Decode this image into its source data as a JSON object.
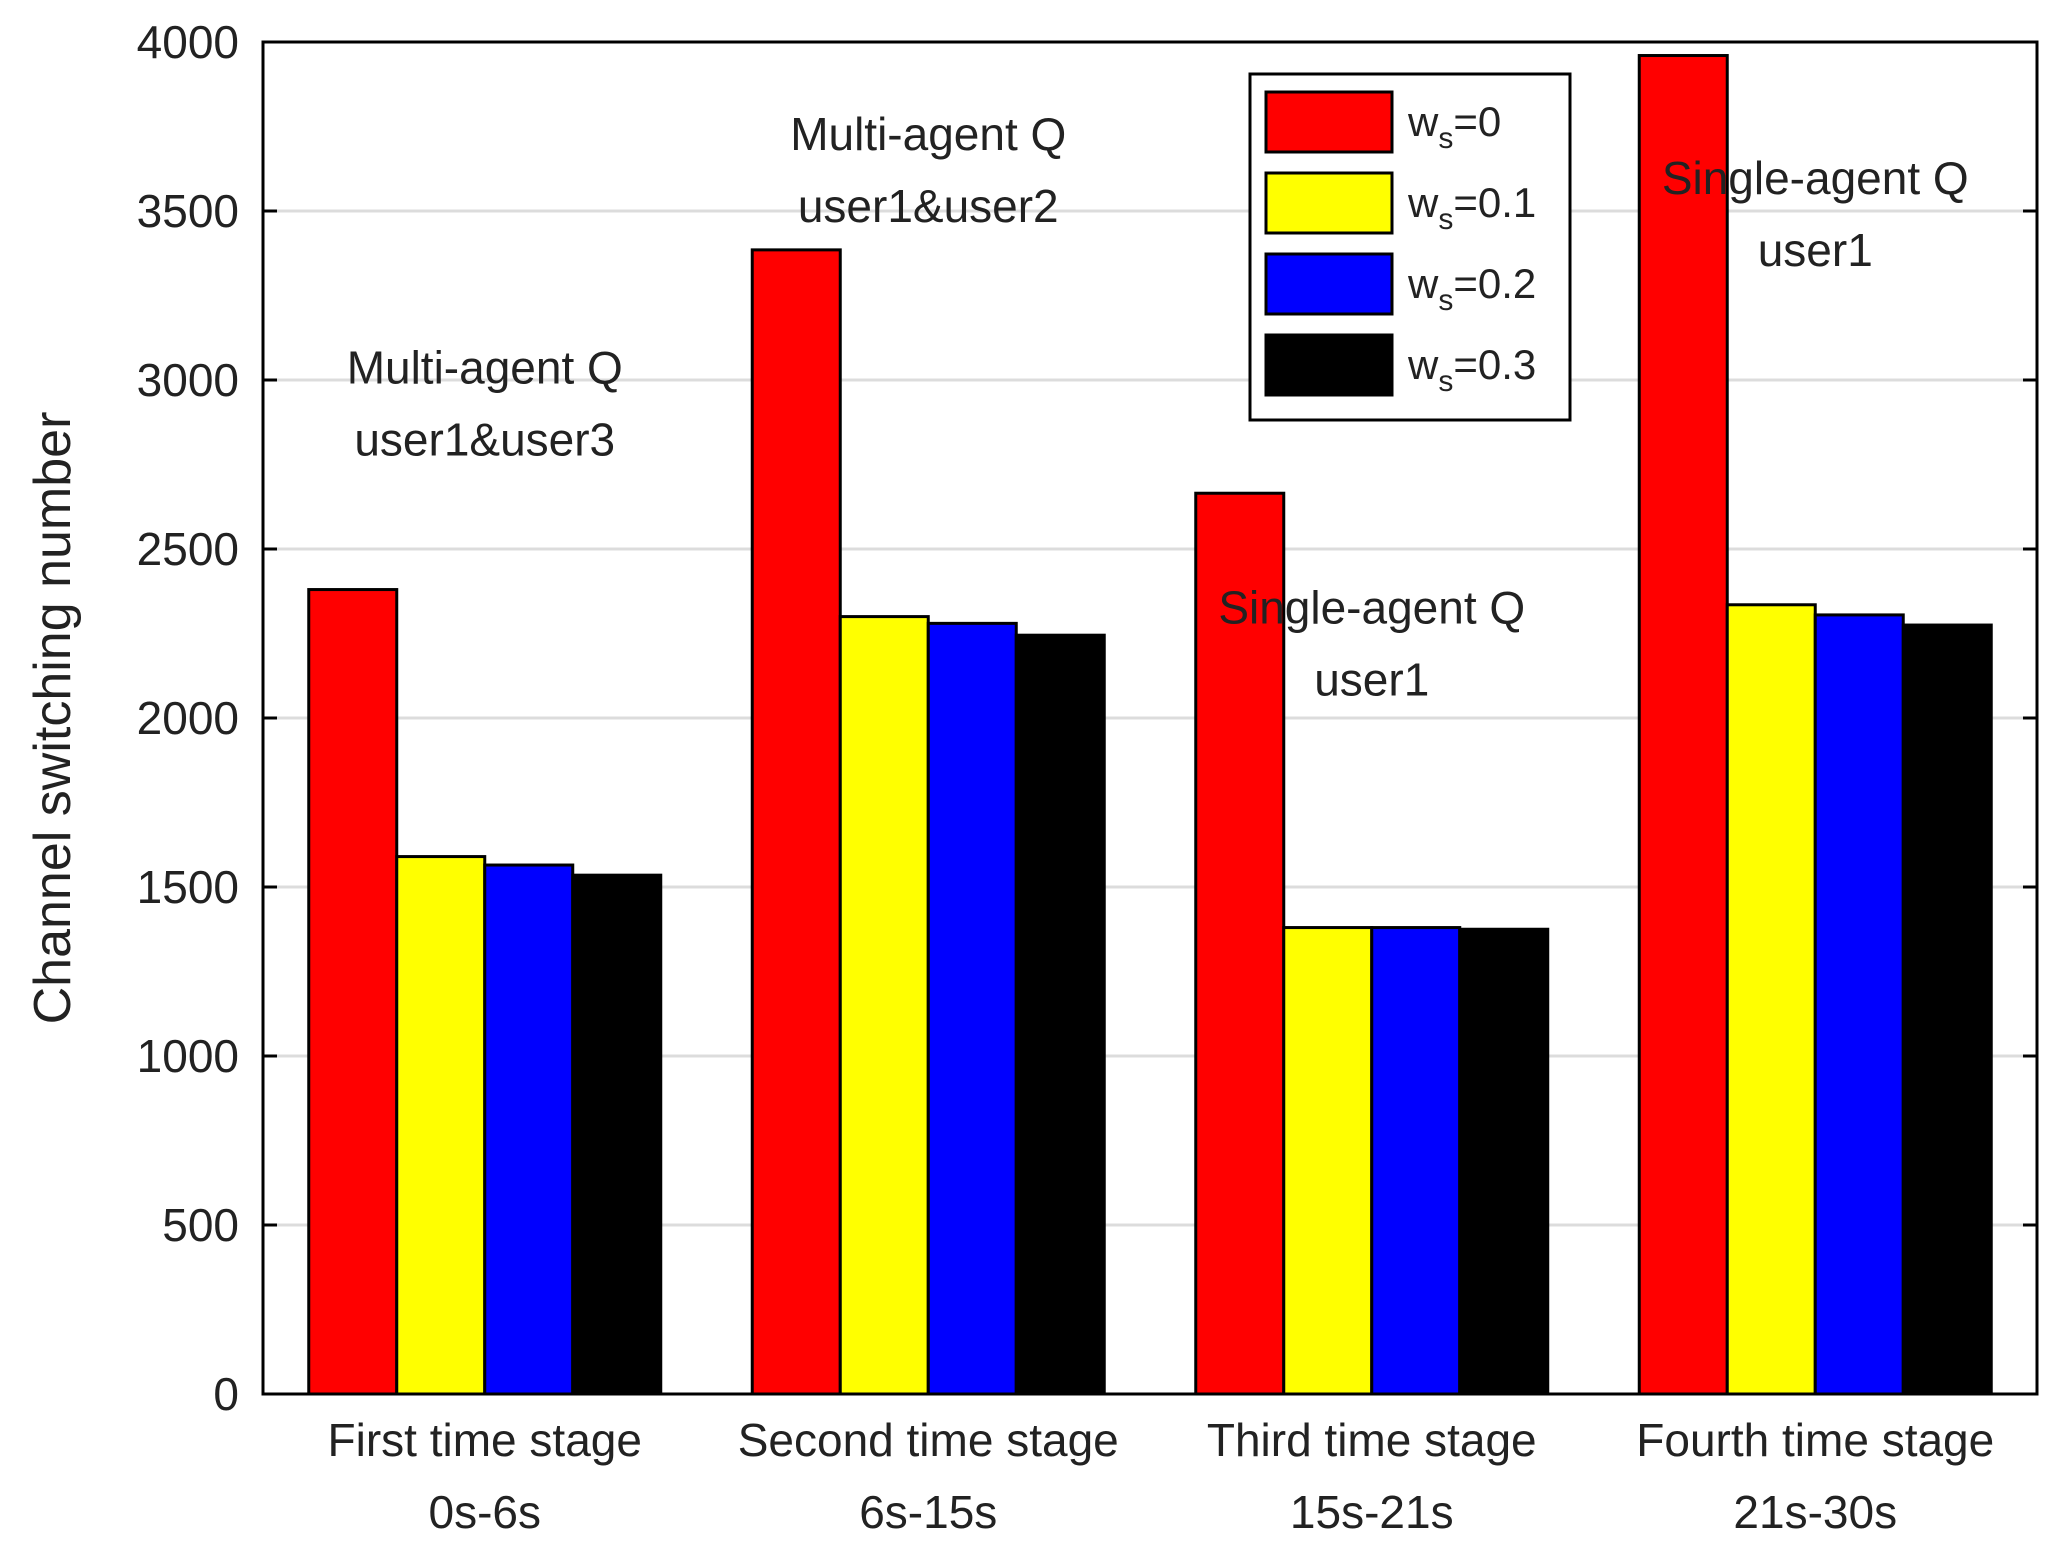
{
  "chart_data": {
    "type": "bar",
    "title": "",
    "xlabel": "",
    "ylabel": "Channel switching number",
    "ylim": [
      0,
      4000
    ],
    "yticks": [
      0,
      500,
      1000,
      1500,
      2000,
      2500,
      3000,
      3500,
      4000
    ],
    "grid": true,
    "legend_position": "top-right",
    "categories": [
      {
        "line1": "First time stage",
        "line2": "0s-6s"
      },
      {
        "line1": "Second time stage",
        "line2": "6s-15s"
      },
      {
        "line1": "Third time stage",
        "line2": "15s-21s"
      },
      {
        "line1": "Fourth time stage",
        "line2": "21s-30s"
      }
    ],
    "series": [
      {
        "name": "ws=0",
        "legend_main": "w",
        "legend_sub": "s",
        "legend_value": "=0",
        "color": "#ff0000",
        "values": [
          2380,
          3385,
          2665,
          3960
        ]
      },
      {
        "name": "ws=0.1",
        "legend_main": "w",
        "legend_sub": "s",
        "legend_value": "=0.1",
        "color": "#ffff00",
        "values": [
          1590,
          2300,
          1380,
          2335
        ]
      },
      {
        "name": "ws=0.2",
        "legend_main": "w",
        "legend_sub": "s",
        "legend_value": "=0.2",
        "color": "#0000ff",
        "values": [
          1565,
          2280,
          1380,
          2305
        ]
      },
      {
        "name": "ws=0.3",
        "legend_main": "w",
        "legend_sub": "s",
        "legend_value": "=0.3",
        "color": "#000000",
        "values": [
          1535,
          2245,
          1375,
          2275
        ]
      }
    ],
    "annotations": [
      {
        "category_index": 0,
        "line1": "Multi-agent Q",
        "line2": "user1&user3",
        "y_value": 2990
      },
      {
        "category_index": 1,
        "line1": "Multi-agent Q",
        "line2": "user1&user2",
        "y_value": 3680
      },
      {
        "category_index": 2,
        "line1": "Single-agent Q",
        "line2": "user1",
        "y_value": 2280
      },
      {
        "category_index": 3,
        "line1": "Single-agent Q",
        "line2": "user1",
        "y_value": 3550
      }
    ]
  }
}
